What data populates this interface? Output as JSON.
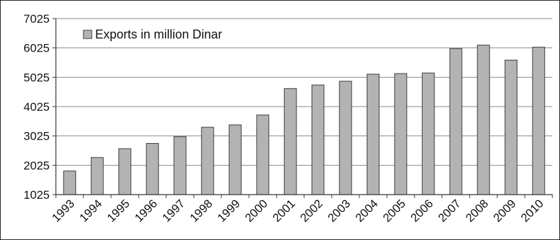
{
  "chart_data": {
    "type": "bar",
    "categories": [
      "1993",
      "1994",
      "1995",
      "1996",
      "1997",
      "1998",
      "1999",
      "2000",
      "2001",
      "2002",
      "2003",
      "2004",
      "2005",
      "2006",
      "2007",
      "2008",
      "2009",
      "2010"
    ],
    "series": [
      {
        "name": "Exports in million Dinar",
        "values": [
          1830,
          2290,
          2590,
          2770,
          3000,
          3320,
          3400,
          3740,
          4640,
          4760,
          4890,
          5130,
          5150,
          5170,
          6000,
          6120,
          5610,
          6050
        ]
      }
    ],
    "ylim": [
      1025,
      7025
    ],
    "yticks": [
      1025,
      2025,
      3025,
      4025,
      5025,
      6025,
      7025
    ],
    "ytick_labels": [
      "1025",
      "2025",
      "3025",
      "4025",
      "5025",
      "6025",
      "7025"
    ],
    "grid": true,
    "legend": "top-left",
    "colors": {
      "bar_fill": "#b3b3b3",
      "bar_stroke": "#3a3a3a",
      "grid": "#8a8a8a",
      "axis": "#333333"
    }
  }
}
